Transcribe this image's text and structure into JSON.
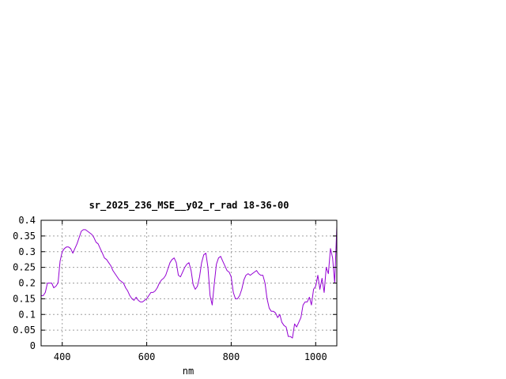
{
  "chart_data": {
    "type": "line",
    "title": "sr_2025_236_MSE__y02_r_rad 18-36-00",
    "xlabel": "nm",
    "ylabel": "",
    "xlim": [
      350,
      1050
    ],
    "ylim": [
      0,
      0.4
    ],
    "grid": true,
    "x_ticks": [
      400,
      600,
      800,
      1000
    ],
    "x_tick_labels": [
      "400",
      "600",
      "800",
      "1000"
    ],
    "y_ticks": [
      0,
      0.05,
      0.1,
      0.15,
      0.2,
      0.25,
      0.3,
      0.35,
      0.4
    ],
    "y_tick_labels": [
      "0",
      "0.05",
      "0.1",
      "0.15",
      "0.2",
      "0.25",
      "0.3",
      "0.35",
      "0.4"
    ],
    "series": [
      {
        "color": "#9400d3",
        "x": [
          350,
          355,
          360,
          365,
          370,
          375,
          380,
          385,
          390,
          395,
          400,
          405,
          410,
          415,
          420,
          425,
          430,
          435,
          440,
          445,
          450,
          455,
          460,
          465,
          470,
          475,
          480,
          485,
          490,
          495,
          500,
          505,
          510,
          515,
          520,
          525,
          530,
          535,
          540,
          545,
          550,
          555,
          560,
          565,
          570,
          575,
          580,
          585,
          590,
          595,
          600,
          605,
          610,
          615,
          620,
          625,
          630,
          635,
          640,
          645,
          650,
          655,
          660,
          665,
          670,
          675,
          680,
          685,
          690,
          695,
          700,
          705,
          710,
          715,
          720,
          725,
          730,
          735,
          740,
          745,
          750,
          755,
          760,
          765,
          770,
          775,
          780,
          785,
          790,
          795,
          800,
          805,
          810,
          815,
          820,
          825,
          830,
          835,
          840,
          845,
          850,
          855,
          860,
          865,
          870,
          875,
          880,
          885,
          890,
          895,
          900,
          905,
          910,
          915,
          920,
          925,
          930,
          935,
          940,
          945,
          950,
          955,
          960,
          965,
          970,
          975,
          980,
          985,
          990,
          995,
          1000,
          1005,
          1010,
          1015,
          1020,
          1025,
          1030,
          1035,
          1040,
          1045,
          1050
        ],
        "y": [
          0.16,
          0.16,
          0.17,
          0.2,
          0.2,
          0.2,
          0.185,
          0.19,
          0.2,
          0.27,
          0.3,
          0.31,
          0.315,
          0.315,
          0.31,
          0.295,
          0.31,
          0.325,
          0.345,
          0.365,
          0.37,
          0.37,
          0.365,
          0.36,
          0.355,
          0.345,
          0.33,
          0.325,
          0.31,
          0.295,
          0.28,
          0.275,
          0.265,
          0.255,
          0.24,
          0.23,
          0.22,
          0.21,
          0.205,
          0.2,
          0.185,
          0.175,
          0.16,
          0.15,
          0.145,
          0.155,
          0.145,
          0.14,
          0.14,
          0.145,
          0.15,
          0.16,
          0.17,
          0.17,
          0.175,
          0.185,
          0.2,
          0.21,
          0.215,
          0.225,
          0.245,
          0.265,
          0.275,
          0.28,
          0.265,
          0.225,
          0.22,
          0.235,
          0.25,
          0.26,
          0.265,
          0.24,
          0.195,
          0.18,
          0.19,
          0.22,
          0.265,
          0.29,
          0.295,
          0.25,
          0.16,
          0.13,
          0.2,
          0.26,
          0.28,
          0.285,
          0.27,
          0.255,
          0.24,
          0.235,
          0.22,
          0.17,
          0.15,
          0.15,
          0.16,
          0.18,
          0.21,
          0.225,
          0.23,
          0.225,
          0.23,
          0.235,
          0.24,
          0.23,
          0.225,
          0.225,
          0.2,
          0.15,
          0.12,
          0.11,
          0.11,
          0.105,
          0.09,
          0.1,
          0.075,
          0.065,
          0.06,
          0.03,
          0.03,
          0.025,
          0.07,
          0.06,
          0.075,
          0.09,
          0.13,
          0.14,
          0.14,
          0.155,
          0.13,
          0.18,
          0.19,
          0.225,
          0.18,
          0.215,
          0.17,
          0.25,
          0.23,
          0.31,
          0.28,
          0.2,
          0.38
        ]
      }
    ]
  }
}
